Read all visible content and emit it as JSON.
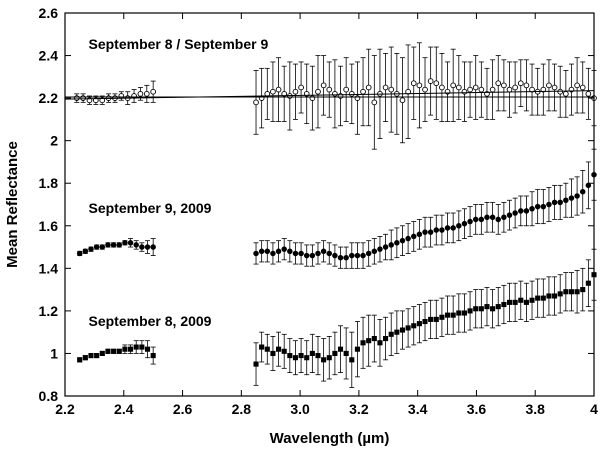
{
  "chart_data": {
    "type": "scatter",
    "title": "",
    "xlabel": "Wavelength (µm)",
    "ylabel": "Mean Reflectance",
    "xlim": [
      2.2,
      4.0
    ],
    "ylim": [
      0.8,
      2.6
    ],
    "x_ticks": [
      "2.2",
      "2.4",
      "2.6",
      "2.8",
      "3.0",
      "3.2",
      "3.4",
      "3.6",
      "3.8",
      "4"
    ],
    "y_ticks": [
      "0.8",
      "1",
      "1.2",
      "1.4",
      "1.6",
      "1.8",
      "2",
      "2.2",
      "2.4",
      "2.6"
    ],
    "grid": false,
    "series": [
      {
        "name": "September 8 / September 9",
        "marker": "open-circle",
        "segments": [
          {
            "x_start": 2.24,
            "x_end": 2.5,
            "y": [
              2.2,
              2.2,
              2.19,
              2.19,
              2.19,
              2.2,
              2.2,
              2.21,
              2.2,
              2.21,
              2.22,
              2.22,
              2.23
            ],
            "err": [
              0.02,
              0.02,
              0.02,
              0.02,
              0.02,
              0.02,
              0.02,
              0.02,
              0.03,
              0.03,
              0.03,
              0.04,
              0.05
            ]
          },
          {
            "x_start": 2.85,
            "x_end": 4.0,
            "y": [
              2.18,
              2.2,
              2.22,
              2.23,
              2.24,
              2.22,
              2.21,
              2.23,
              2.25,
              2.22,
              2.2,
              2.23,
              2.26,
              2.24,
              2.22,
              2.21,
              2.24,
              2.22,
              2.2,
              2.23,
              2.25,
              2.18,
              2.22,
              2.25,
              2.24,
              2.22,
              2.19,
              2.23,
              2.27,
              2.26,
              2.24,
              2.28,
              2.27,
              2.25,
              2.23,
              2.26,
              2.25,
              2.23,
              2.24,
              2.25,
              2.24,
              2.22,
              2.24,
              2.27,
              2.26,
              2.24,
              2.25,
              2.27,
              2.26,
              2.24,
              2.23,
              2.24,
              2.26,
              2.25,
              2.23,
              2.22,
              2.24,
              2.26,
              2.25,
              2.22,
              2.2
            ],
            "err": [
              0.15,
              0.14,
              0.12,
              0.14,
              0.15,
              0.13,
              0.16,
              0.13,
              0.12,
              0.14,
              0.15,
              0.17,
              0.14,
              0.13,
              0.16,
              0.14,
              0.15,
              0.14,
              0.17,
              0.16,
              0.18,
              0.22,
              0.21,
              0.16,
              0.2,
              0.19,
              0.2,
              0.22,
              0.17,
              0.2,
              0.15,
              0.16,
              0.17,
              0.16,
              0.14,
              0.17,
              0.15,
              0.14,
              0.13,
              0.15,
              0.13,
              0.12,
              0.14,
              0.13,
              0.12,
              0.13,
              0.12,
              0.11,
              0.12,
              0.12,
              0.11,
              0.12,
              0.12,
              0.11,
              0.12,
              0.11,
              0.12,
              0.13,
              0.12,
              0.12,
              0.13
            ]
          }
        ],
        "fit_lines": [
          {
            "x": [
              2.2,
              4.0
            ],
            "y": [
              2.205,
              2.205
            ]
          },
          {
            "x": [
              2.2,
              4.0
            ],
            "y": [
              2.195,
              2.235
            ]
          }
        ]
      },
      {
        "name": "September 9, 2009",
        "marker": "filled-circle",
        "segments": [
          {
            "x_start": 2.25,
            "x_end": 2.5,
            "y": [
              1.47,
              1.48,
              1.49,
              1.5,
              1.5,
              1.51,
              1.51,
              1.51,
              1.52,
              1.52,
              1.51,
              1.5,
              1.5,
              1.5
            ],
            "err": [
              0.01,
              0.01,
              0.01,
              0.01,
              0.01,
              0.01,
              0.01,
              0.01,
              0.01,
              0.02,
              0.02,
              0.02,
              0.03,
              0.04
            ]
          },
          {
            "x_start": 2.85,
            "x_end": 4.0,
            "y": [
              1.47,
              1.48,
              1.48,
              1.47,
              1.48,
              1.49,
              1.48,
              1.47,
              1.47,
              1.46,
              1.46,
              1.47,
              1.48,
              1.47,
              1.46,
              1.45,
              1.45,
              1.46,
              1.46,
              1.46,
              1.47,
              1.48,
              1.49,
              1.5,
              1.51,
              1.52,
              1.53,
              1.54,
              1.55,
              1.56,
              1.57,
              1.57,
              1.58,
              1.58,
              1.59,
              1.59,
              1.6,
              1.61,
              1.62,
              1.63,
              1.63,
              1.64,
              1.64,
              1.63,
              1.64,
              1.65,
              1.66,
              1.67,
              1.67,
              1.68,
              1.69,
              1.69,
              1.7,
              1.71,
              1.71,
              1.72,
              1.73,
              1.74,
              1.76,
              1.79,
              1.84
            ],
            "err": [
              0.05,
              0.05,
              0.05,
              0.05,
              0.05,
              0.05,
              0.05,
              0.05,
              0.05,
              0.05,
              0.05,
              0.05,
              0.05,
              0.05,
              0.05,
              0.05,
              0.05,
              0.06,
              0.06,
              0.06,
              0.06,
              0.06,
              0.06,
              0.06,
              0.07,
              0.07,
              0.07,
              0.07,
              0.07,
              0.07,
              0.07,
              0.07,
              0.07,
              0.07,
              0.07,
              0.07,
              0.07,
              0.07,
              0.07,
              0.07,
              0.07,
              0.07,
              0.07,
              0.07,
              0.07,
              0.07,
              0.07,
              0.07,
              0.07,
              0.08,
              0.08,
              0.08,
              0.08,
              0.08,
              0.08,
              0.08,
              0.09,
              0.09,
              0.1,
              0.11,
              0.12
            ]
          }
        ]
      },
      {
        "name": "September 8, 2009",
        "marker": "filled-square",
        "segments": [
          {
            "x_start": 2.25,
            "x_end": 2.5,
            "y": [
              0.97,
              0.98,
              0.99,
              0.99,
              1.0,
              1.01,
              1.01,
              1.01,
              1.02,
              1.02,
              1.03,
              1.03,
              1.02,
              0.99
            ],
            "err": [
              0.01,
              0.01,
              0.01,
              0.01,
              0.01,
              0.01,
              0.01,
              0.01,
              0.02,
              0.02,
              0.03,
              0.03,
              0.04,
              0.04
            ]
          },
          {
            "x_start": 2.85,
            "x_end": 4.0,
            "y": [
              0.95,
              1.03,
              1.02,
              1.0,
              1.02,
              1.01,
              0.99,
              0.98,
              0.99,
              0.98,
              1.0,
              0.99,
              0.97,
              0.98,
              1.0,
              1.02,
              1.0,
              0.97,
              1.02,
              1.05,
              1.06,
              1.07,
              1.05,
              1.07,
              1.09,
              1.1,
              1.11,
              1.12,
              1.13,
              1.14,
              1.15,
              1.16,
              1.16,
              1.17,
              1.18,
              1.18,
              1.19,
              1.19,
              1.2,
              1.21,
              1.21,
              1.22,
              1.21,
              1.22,
              1.23,
              1.24,
              1.24,
              1.25,
              1.24,
              1.25,
              1.26,
              1.26,
              1.27,
              1.27,
              1.28,
              1.29,
              1.29,
              1.29,
              1.3,
              1.33,
              1.37
            ],
            "err": [
              0.1,
              0.07,
              0.07,
              0.08,
              0.08,
              0.08,
              0.08,
              0.08,
              0.08,
              0.08,
              0.09,
              0.09,
              0.1,
              0.1,
              0.1,
              0.11,
              0.12,
              0.13,
              0.13,
              0.12,
              0.12,
              0.11,
              0.11,
              0.1,
              0.1,
              0.1,
              0.09,
              0.09,
              0.09,
              0.09,
              0.09,
              0.09,
              0.09,
              0.09,
              0.09,
              0.09,
              0.09,
              0.09,
              0.09,
              0.09,
              0.09,
              0.09,
              0.09,
              0.09,
              0.09,
              0.09,
              0.09,
              0.09,
              0.09,
              0.09,
              0.09,
              0.09,
              0.09,
              0.09,
              0.09,
              0.09,
              0.09,
              0.1,
              0.1,
              0.11,
              0.12
            ]
          }
        ]
      }
    ],
    "annotations": [
      {
        "text": "September 8 / September 9",
        "x": 2.28,
        "y": 2.43
      },
      {
        "text": "September 9, 2009",
        "x": 2.28,
        "y": 1.66
      },
      {
        "text": "September 8, 2009",
        "x": 2.28,
        "y": 1.13
      }
    ]
  }
}
